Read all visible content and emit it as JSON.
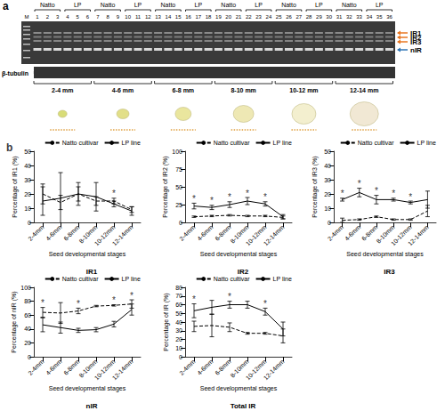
{
  "panel_a": {
    "label": "a",
    "marker": "M",
    "groups": [
      {
        "label": "Natto",
        "lanes": [
          1,
          2,
          3
        ]
      },
      {
        "label": "LP",
        "lanes": [
          4,
          5,
          6
        ]
      },
      {
        "label": "Natto",
        "lanes": [
          7,
          8,
          9
        ]
      },
      {
        "label": "LP",
        "lanes": [
          10,
          11,
          12
        ]
      },
      {
        "label": "Natto",
        "lanes": [
          13,
          14,
          15
        ]
      },
      {
        "label": "LP",
        "lanes": [
          16,
          17,
          18
        ]
      },
      {
        "label": "Natto",
        "lanes": [
          19,
          20,
          21
        ]
      },
      {
        "label": "LP",
        "lanes": [
          22,
          23,
          24
        ]
      },
      {
        "label": "Natto",
        "lanes": [
          25,
          26,
          27
        ]
      },
      {
        "label": "LP",
        "lanes": [
          28,
          29,
          30
        ]
      },
      {
        "label": "Natto",
        "lanes": [
          31,
          32,
          33
        ]
      },
      {
        "label": "LP",
        "lanes": [
          34,
          35,
          36
        ]
      }
    ],
    "bands": [
      {
        "label": "IR1",
        "color": "#e87722"
      },
      {
        "label": "IR2",
        "color": "#e87722"
      },
      {
        "label": "IR3",
        "color": "#e87722"
      },
      {
        "label": "nIR",
        "color": "#2e75b6"
      }
    ],
    "loading_control": "β-tubulin",
    "stages": [
      "2-4 mm",
      "4-6 mm",
      "6-8 mm",
      "8-10 mm",
      "10-12 mm",
      "12-14 mm"
    ]
  },
  "panel_b": {
    "label": "b"
  },
  "chart_data": [
    {
      "type": "line",
      "title": "IR1",
      "x_label": "Seed developmental stages",
      "y_label": "Percentage of IR1 (%)",
      "categories": [
        "2-4mm",
        "4-6mm",
        "6-8mm",
        "8-10mm",
        "10-12mm",
        "12-14mm"
      ],
      "ylim": [
        0,
        50
      ],
      "yticks": [
        0,
        10,
        20,
        30,
        40,
        50
      ],
      "grid": false,
      "legend": "top-right",
      "series": [
        {
          "name": "Natto cultivar",
          "color": "#000000",
          "line_style": "dashed",
          "values": [
            20,
            14,
            20,
            15,
            15,
            9
          ],
          "errors": [
            7,
            5,
            5,
            3,
            2,
            2
          ]
        },
        {
          "name": "LP line",
          "color": "#000000",
          "line_style": "solid",
          "values": [
            15,
            17,
            20,
            18,
            13,
            8
          ],
          "errors": [
            10,
            18,
            8,
            10,
            2,
            3
          ]
        }
      ],
      "annotations": [
        {
          "text": "*",
          "category": "10-12mm"
        }
      ]
    },
    {
      "type": "line",
      "title": "IR2",
      "x_label": "Seed developmental stages",
      "y_label": "Percentage of IR2 (%)",
      "categories": [
        "2-4mm",
        "4-6mm",
        "6-8mm",
        "8-10mm",
        "10-12mm",
        "12-14mm"
      ],
      "ylim": [
        0,
        100
      ],
      "yticks": [
        0,
        25,
        50,
        75,
        100
      ],
      "grid": false,
      "legend": "top-right",
      "series": [
        {
          "name": "Natto cultivar",
          "color": "#000000",
          "line_style": "dashed",
          "values": [
            8,
            9,
            10,
            9,
            9,
            7
          ],
          "errors": [
            1,
            1,
            1,
            1,
            1,
            2
          ]
        },
        {
          "name": "LP line",
          "color": "#000000",
          "line_style": "solid",
          "values": [
            23,
            21,
            25,
            30,
            26,
            8
          ],
          "errors": [
            4,
            3,
            4,
            5,
            3,
            3
          ]
        }
      ],
      "annotations": [
        {
          "text": "*",
          "category": "2-4mm"
        },
        {
          "text": "*",
          "category": "4-6mm"
        },
        {
          "text": "*",
          "category": "6-8mm"
        },
        {
          "text": "*",
          "category": "8-10mm"
        },
        {
          "text": "*",
          "category": "10-12mm"
        }
      ]
    },
    {
      "type": "line",
      "title": "IR3",
      "x_label": "Seed developmental stages",
      "y_label": "Percentage of IR3 (%)",
      "categories": [
        "2-4mm",
        "4-6mm",
        "6-8mm",
        "8-10mm",
        "10-12mm",
        "12-14mm"
      ],
      "ylim": [
        0,
        50
      ],
      "yticks": [
        0,
        10,
        20,
        30,
        40,
        50
      ],
      "grid": false,
      "legend": "top-right",
      "series": [
        {
          "name": "Natto cultivar",
          "color": "#000000",
          "line_style": "dashed",
          "values": [
            1.5,
            2,
            4,
            2,
            2,
            8
          ],
          "errors": [
            1.5,
            0.5,
            0.5,
            0.5,
            0.5,
            4
          ]
        },
        {
          "name": "LP line",
          "color": "#000000",
          "line_style": "solid",
          "values": [
            16,
            21,
            16,
            16,
            14,
            16
          ],
          "errors": [
            1,
            3,
            3,
            1,
            1,
            6
          ]
        }
      ],
      "annotations": [
        {
          "text": "*",
          "category": "2-4mm"
        },
        {
          "text": "*",
          "category": "4-6mm"
        },
        {
          "text": "*",
          "category": "6-8mm"
        },
        {
          "text": "*",
          "category": "8-10mm"
        },
        {
          "text": "*",
          "category": "10-12mm"
        }
      ]
    },
    {
      "type": "line",
      "title": "nIR",
      "x_label": "Seed developmental stages",
      "y_label": "Percentage of nIR (%)",
      "categories": [
        "2-4mm",
        "4-6mm",
        "6-8mm",
        "8-10mm",
        "10-12mm",
        "12-14mm"
      ],
      "ylim": [
        0,
        100
      ],
      "yticks": [
        0,
        20,
        40,
        60,
        80,
        100
      ],
      "grid": false,
      "legend": "top-right",
      "series": [
        {
          "name": "Natto cultivar",
          "color": "#000000",
          "line_style": "dashed",
          "values": [
            64,
            63,
            66,
            73,
            74,
            76
          ],
          "errors": [
            7,
            15,
            4,
            1,
            1,
            6
          ]
        },
        {
          "name": "LP line",
          "color": "#000000",
          "line_style": "solid",
          "values": [
            46,
            42,
            38,
            39,
            47,
            68
          ],
          "errors": [
            10,
            8,
            3,
            3,
            4,
            8
          ]
        }
      ],
      "annotations": [
        {
          "text": "*",
          "category": "2-4mm"
        },
        {
          "text": "*",
          "category": "6-8mm"
        },
        {
          "text": "*",
          "category": "10-12mm"
        },
        {
          "text": "*",
          "category": "12-14mm"
        }
      ]
    },
    {
      "type": "line",
      "title": "Total IR",
      "x_label": "Seed developmental stages",
      "y_label": "Percentage of IR (%)",
      "categories": [
        "2-4mm",
        "4-6mm",
        "6-8mm",
        "8-10mm",
        "10-12mm",
        "12-14mm"
      ],
      "ylim": [
        0,
        80
      ],
      "yticks": [
        0,
        10,
        20,
        30,
        40,
        50,
        60,
        70,
        80
      ],
      "grid": false,
      "legend": "top-right",
      "series": [
        {
          "name": "Natto cultivar",
          "color": "#000000",
          "line_style": "dashed",
          "values": [
            35,
            36,
            34,
            27,
            27,
            24
          ],
          "errors": [
            6,
            13,
            5,
            1,
            1,
            8
          ]
        },
        {
          "name": "LP line",
          "color": "#000000",
          "line_style": "solid",
          "values": [
            53,
            57,
            60,
            60,
            52,
            32
          ],
          "errors": [
            8,
            8,
            4,
            4,
            4,
            8
          ]
        }
      ],
      "annotations": [
        {
          "text": "*",
          "category": "2-4mm"
        },
        {
          "text": "*",
          "category": "6-8mm"
        },
        {
          "text": "*",
          "category": "10-12mm"
        }
      ]
    }
  ]
}
